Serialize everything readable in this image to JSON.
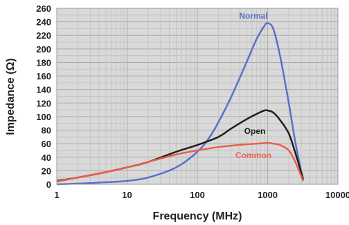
{
  "chart_data": {
    "type": "line",
    "xlabel": "Frequency (MHz)",
    "ylabel": "Impedance (Ω)",
    "x_scale": "log",
    "xlim": [
      1,
      10000
    ],
    "ylim": [
      0,
      260
    ],
    "x_ticks": [
      "1",
      "10",
      "100",
      "1000",
      "10000"
    ],
    "y_ticks": [
      "0",
      "20",
      "40",
      "60",
      "80",
      "100",
      "120",
      "140",
      "160",
      "180",
      "200",
      "220",
      "240",
      "260"
    ],
    "grid": true,
    "series": [
      {
        "name": "Normal",
        "color": "#5b6fc9",
        "x": [
          1,
          2,
          5,
          10,
          20,
          50,
          100,
          150,
          200,
          300,
          500,
          700,
          900,
          1000,
          1200,
          1500,
          2000,
          2500,
          3200
        ],
        "y": [
          0,
          1,
          3,
          5,
          10,
          25,
          48,
          70,
          92,
          128,
          180,
          215,
          234,
          238,
          230,
          190,
          120,
          60,
          5
        ]
      },
      {
        "name": "Open",
        "color": "#1e1e1e",
        "x": [
          1,
          2,
          5,
          10,
          20,
          50,
          100,
          200,
          300,
          500,
          700,
          900,
          1000,
          1200,
          1500,
          2000,
          2500,
          3200
        ],
        "y": [
          5,
          10,
          18,
          25,
          33,
          48,
          58,
          70,
          82,
          96,
          104,
          109,
          109,
          106,
          95,
          75,
          45,
          8
        ]
      },
      {
        "name": "Common",
        "color": "#e8604c",
        "x": [
          1,
          2,
          5,
          10,
          20,
          50,
          100,
          200,
          300,
          500,
          700,
          1000,
          1200,
          1500,
          2000,
          2500,
          3200
        ],
        "y": [
          4,
          10,
          18,
          25,
          33,
          44,
          50,
          55,
          57,
          59,
          60,
          61,
          60,
          58,
          50,
          32,
          5
        ]
      }
    ]
  }
}
